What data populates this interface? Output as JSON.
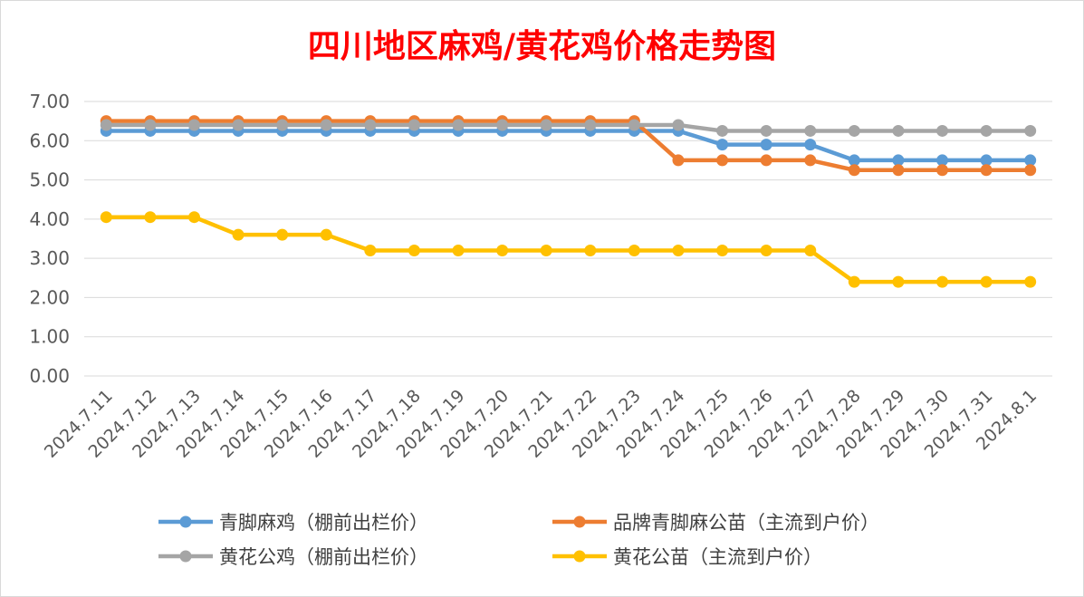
{
  "chart_data": {
    "type": "line",
    "title": "四川地区麻鸡/黄花鸡价格走势图",
    "xlabel": "",
    "ylabel": "",
    "ylim": [
      0,
      7
    ],
    "yticks": [
      "0.00",
      "1.00",
      "2.00",
      "3.00",
      "4.00",
      "5.00",
      "6.00",
      "7.00"
    ],
    "grid": true,
    "legend_position": "bottom",
    "categories": [
      "2024.7.11",
      "2024.7.12",
      "2024.7.13",
      "2024.7.14",
      "2024.7.15",
      "2024.7.16",
      "2024.7.17",
      "2024.7.18",
      "2024.7.19",
      "2024.7.20",
      "2024.7.21",
      "2024.7.22",
      "2024.7.23",
      "2024.7.24",
      "2024.7.25",
      "2024.7.26",
      "2024.7.27",
      "2024.7.28",
      "2024.7.29",
      "2024.7.30",
      "2024.7.31",
      "2024.8.1"
    ],
    "series": [
      {
        "name": "青脚麻鸡（棚前出栏价）",
        "color": "#5b9bd5",
        "values": [
          6.25,
          6.25,
          6.25,
          6.25,
          6.25,
          6.25,
          6.25,
          6.25,
          6.25,
          6.25,
          6.25,
          6.25,
          6.25,
          6.25,
          5.9,
          5.9,
          5.9,
          5.5,
          5.5,
          5.5,
          5.5,
          5.5
        ]
      },
      {
        "name": "品牌青脚麻公苗（主流到户价）",
        "color": "#ed7d31",
        "values": [
          6.5,
          6.5,
          6.5,
          6.5,
          6.5,
          6.5,
          6.5,
          6.5,
          6.5,
          6.5,
          6.5,
          6.5,
          6.5,
          5.5,
          5.5,
          5.5,
          5.5,
          5.25,
          5.25,
          5.25,
          5.25,
          5.25
        ]
      },
      {
        "name": "黄花公鸡（棚前出栏价）",
        "color": "#a5a5a5",
        "values": [
          6.4,
          6.4,
          6.4,
          6.4,
          6.4,
          6.4,
          6.4,
          6.4,
          6.4,
          6.4,
          6.4,
          6.4,
          6.4,
          6.4,
          6.25,
          6.25,
          6.25,
          6.25,
          6.25,
          6.25,
          6.25,
          6.25
        ]
      },
      {
        "name": "黄花公苗（主流到户价）",
        "color": "#ffc000",
        "values": [
          4.05,
          4.05,
          4.05,
          3.6,
          3.6,
          3.6,
          3.2,
          3.2,
          3.2,
          3.2,
          3.2,
          3.2,
          3.2,
          3.2,
          3.2,
          3.2,
          3.2,
          2.4,
          2.4,
          2.4,
          2.4,
          2.4
        ]
      }
    ]
  }
}
